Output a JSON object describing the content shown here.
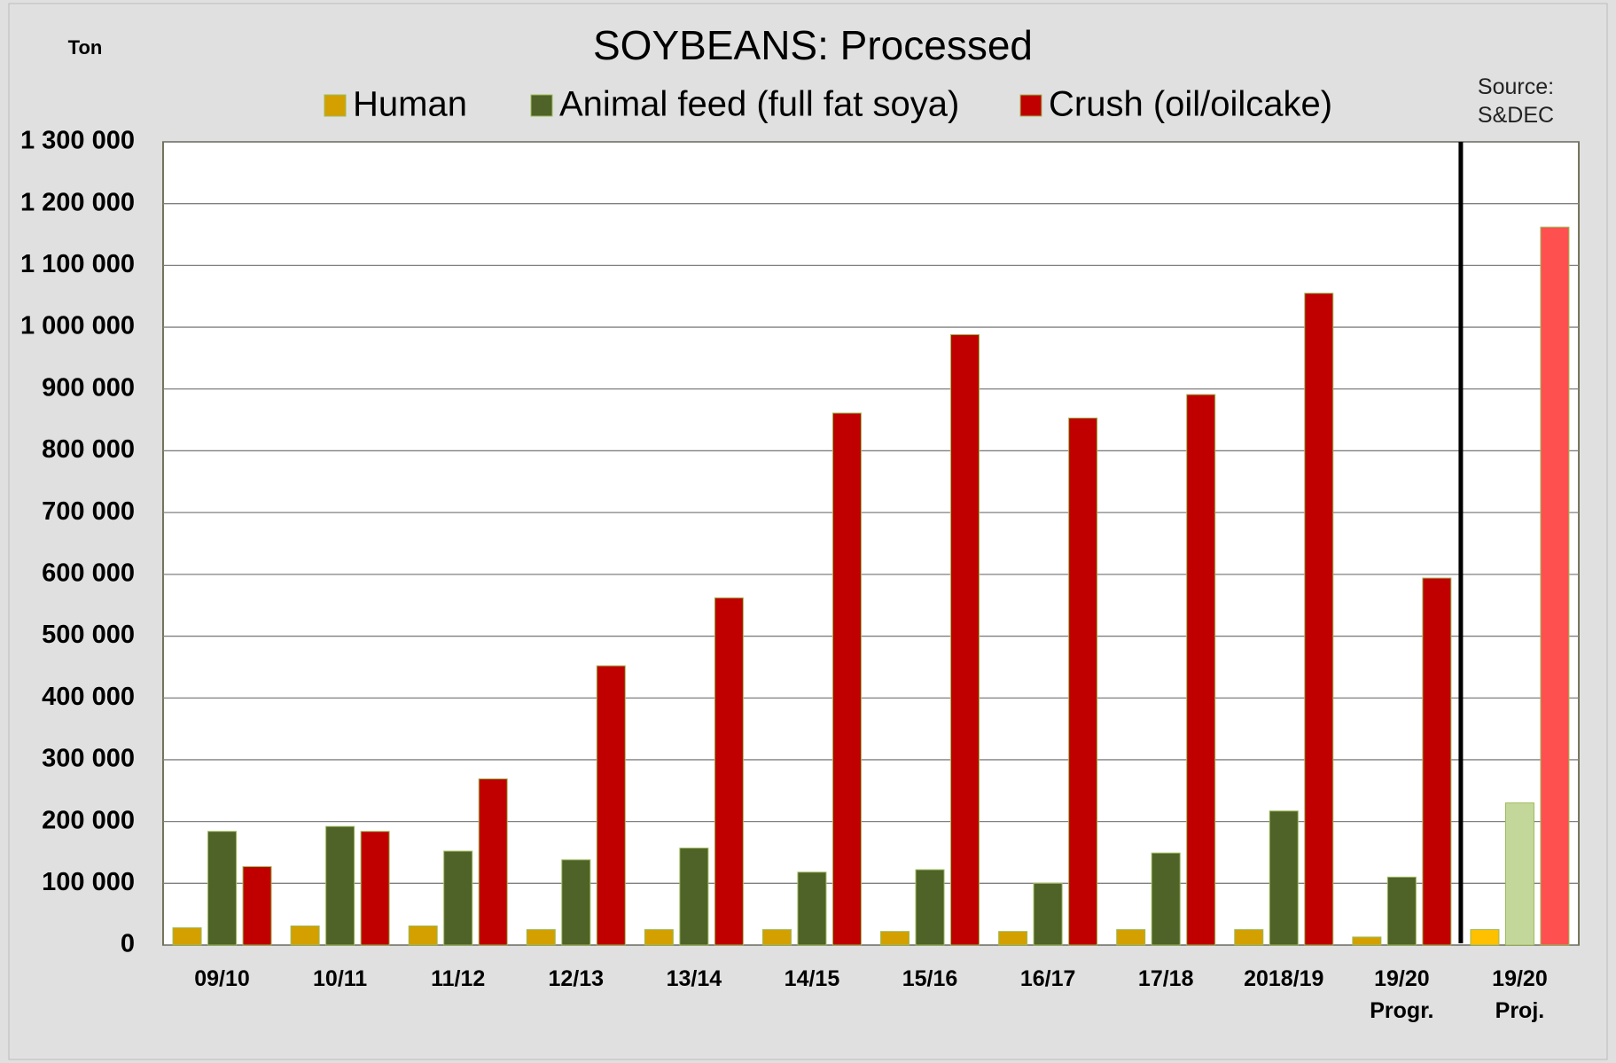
{
  "chart_data": {
    "type": "bar",
    "title": "SOYBEANS: Processed",
    "y_unit": "Ton",
    "source": "Source:\nS&DEC",
    "categories": [
      "09/10",
      "10/11",
      "11/12",
      "12/13",
      "13/14",
      "14/15",
      "15/16",
      "16/17",
      "17/18",
      "2018/19",
      "19/20\nProgr.",
      "19/20\nProj."
    ],
    "series": [
      {
        "name": "Human",
        "color": "#d4a000",
        "colors": [
          "#d4a000",
          "#d4a000",
          "#d4a000",
          "#d4a000",
          "#d4a000",
          "#d4a000",
          "#d4a000",
          "#d4a000",
          "#d4a000",
          "#d4a000",
          "#d4a000",
          "#ffc000"
        ],
        "values": [
          28000,
          31000,
          31000,
          25000,
          25000,
          25000,
          22000,
          22000,
          25000,
          25000,
          13000,
          25000
        ]
      },
      {
        "name": "Animal feed (full fat soya)",
        "color": "#4f6228",
        "colors": [
          "#4f6228",
          "#4f6228",
          "#4f6228",
          "#4f6228",
          "#4f6228",
          "#4f6228",
          "#4f6228",
          "#4f6228",
          "#4f6228",
          "#4f6228",
          "#4f6228",
          "#c4d79b"
        ],
        "values": [
          184000,
          192000,
          152000,
          138000,
          157000,
          118000,
          122000,
          100000,
          149000,
          217000,
          110000,
          230000
        ]
      },
      {
        "name": "Crush (oil/oilcake)",
        "color": "#c00000",
        "colors": [
          "#c00000",
          "#c00000",
          "#c00000",
          "#c00000",
          "#c00000",
          "#c00000",
          "#c00000",
          "#c00000",
          "#c00000",
          "#c00000",
          "#c00000",
          "#ff5050"
        ],
        "values": [
          127000,
          184000,
          269000,
          452000,
          562000,
          861000,
          988000,
          853000,
          891000,
          1055000,
          594000,
          1162000
        ]
      }
    ],
    "ylim": [
      0,
      1300000
    ],
    "yticks": [
      0,
      {
        "value": 100000,
        "label": "100 000"
      },
      {
        "value": 200000,
        "label": "200 000"
      },
      {
        "value": 300000,
        "label": "300 000"
      },
      {
        "value": 400000,
        "label": "400 000"
      },
      {
        "value": 500000,
        "label": "500 000"
      },
      {
        "value": 600000,
        "label": "600 000"
      },
      {
        "value": 700000,
        "label": "700 000"
      },
      {
        "value": 800000,
        "label": "800 000"
      },
      {
        "value": 900000,
        "label": "900 000"
      },
      {
        "value": 1000000,
        "label": "1 000 000"
      },
      {
        "value": 1100000,
        "label": "1 100 000"
      },
      {
        "value": 1200000,
        "label": "1 200 000"
      },
      {
        "value": 1300000,
        "label": "1 300 000"
      }
    ],
    "grid": true,
    "legend": "top"
  }
}
